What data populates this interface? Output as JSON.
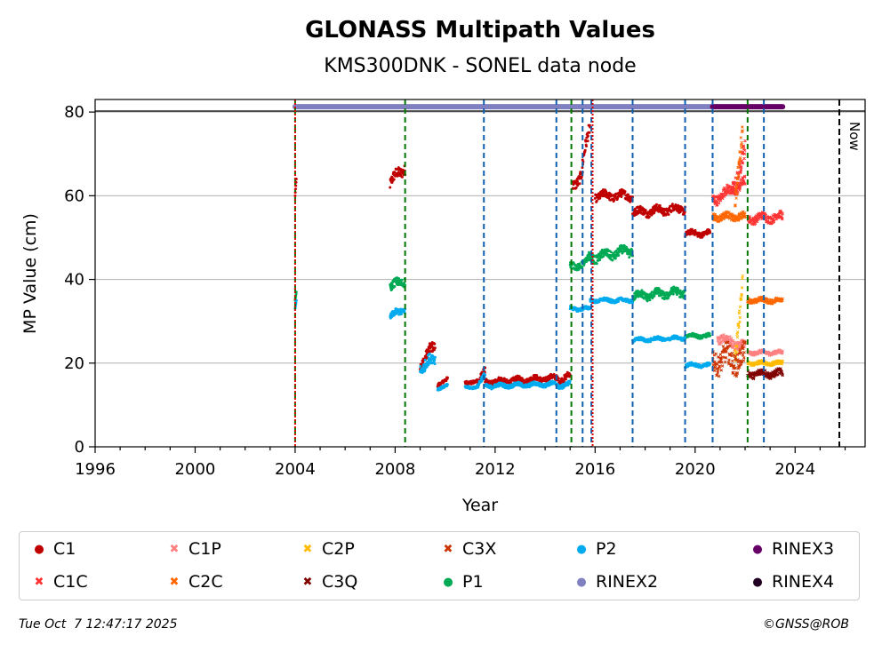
{
  "chart_data": {
    "type": "scatter",
    "title": "GLONASS Multipath Values",
    "subtitle": "KMS300DNK - SONEL data node",
    "xlabel": "Year",
    "ylabel": "MP Value (cm)",
    "xlim": [
      1996,
      2026.8
    ],
    "ylim": [
      0,
      83
    ],
    "x_ticks": [
      1996,
      2000,
      2004,
      2008,
      2012,
      2016,
      2020,
      2024
    ],
    "y_ticks": [
      0,
      20,
      40,
      60,
      80
    ],
    "grid": "horizontal",
    "now_marker": {
      "x": 2025.77,
      "label": "Now"
    },
    "vlines_blue": [
      2011.55,
      2014.45,
      2015.5,
      2015.85,
      2017.5,
      2019.6,
      2020.7,
      2022.75
    ],
    "vlines_green": [
      2004.0,
      2008.4,
      2015.05,
      2022.1
    ],
    "vlines_red": [
      2004.0,
      2015.9
    ],
    "rinex_bars": [
      {
        "name": "RINEX2",
        "y": 81.5,
        "start": 2004.0,
        "end": 2020.7,
        "color": "#8080c0"
      },
      {
        "name": "RINEX3",
        "y": 81.5,
        "start": 2020.7,
        "end": 2023.5,
        "color": "#660066"
      }
    ],
    "series": [
      {
        "name": "C1",
        "color": "#c00000",
        "marker": "dot",
        "segments": [
          [
            2004.0,
            2004.05,
            60,
            64,
            0
          ],
          [
            2007.8,
            2008.4,
            63,
            67,
            2.5
          ],
          [
            2009.0,
            2009.6,
            20,
            24,
            2.5
          ],
          [
            2009.7,
            2010.1,
            15,
            16,
            0.8
          ],
          [
            2010.8,
            2011.3,
            15,
            16,
            0.8
          ],
          [
            2011.3,
            2011.6,
            15,
            18,
            1.5
          ],
          [
            2011.6,
            2014.5,
            15.5,
            16.5,
            1.2
          ],
          [
            2014.5,
            2015.0,
            16,
            17,
            1.5
          ],
          [
            2015.1,
            2015.5,
            62,
            66,
            2.5
          ],
          [
            2015.5,
            2015.8,
            68,
            76,
            3
          ],
          [
            2016.0,
            2017.5,
            60,
            60,
            1.8
          ],
          [
            2017.5,
            2019.6,
            56,
            57,
            1.8
          ],
          [
            2019.6,
            2020.6,
            51,
            51,
            1.2
          ]
        ]
      },
      {
        "name": "C1C",
        "color": "#ff3333",
        "marker": "x",
        "segments": [
          [
            2020.7,
            2022.0,
            59,
            63,
            2.2
          ],
          [
            2021.5,
            2022.0,
            62,
            70,
            4
          ],
          [
            2022.1,
            2023.5,
            54.5,
            55,
            1.8
          ]
        ]
      },
      {
        "name": "C1P",
        "color": "#ff8080",
        "marker": "x",
        "segments": [
          [
            2020.9,
            2022.0,
            26,
            24,
            2
          ],
          [
            2022.1,
            2023.5,
            22.5,
            22.5,
            0.8
          ]
        ]
      },
      {
        "name": "C2C",
        "color": "#ff6600",
        "marker": "x",
        "segments": [
          [
            2020.7,
            2022.0,
            55,
            55,
            1.5
          ],
          [
            2021.6,
            2021.9,
            60,
            75,
            4
          ],
          [
            2022.1,
            2023.5,
            35,
            35,
            1
          ]
        ]
      },
      {
        "name": "C2P",
        "color": "#ffbb00",
        "marker": "x",
        "segments": [
          [
            2021.6,
            2021.9,
            22,
            38,
            4
          ],
          [
            2022.1,
            2023.5,
            20,
            20,
            0.8
          ]
        ]
      },
      {
        "name": "C3Q",
        "color": "#800000",
        "marker": "x",
        "segments": [
          [
            2022.1,
            2023.5,
            17.5,
            17.5,
            1.5
          ]
        ]
      },
      {
        "name": "C3X",
        "color": "#cc3300",
        "marker": "x",
        "segments": [
          [
            2020.7,
            2022.0,
            21,
            21,
            5
          ]
        ]
      },
      {
        "name": "P1",
        "color": "#00aa55",
        "marker": "dot",
        "segments": [
          [
            2004.0,
            2004.05,
            35,
            37,
            0
          ],
          [
            2007.8,
            2008.4,
            38,
            40,
            2
          ],
          [
            2015.0,
            2015.7,
            43,
            44,
            1.5
          ],
          [
            2015.7,
            2017.5,
            45,
            47,
            2
          ],
          [
            2017.5,
            2019.6,
            36,
            37,
            1.8
          ],
          [
            2019.6,
            2020.6,
            26.5,
            26.5,
            0.8
          ]
        ]
      },
      {
        "name": "P2",
        "color": "#00aaee",
        "marker": "dot",
        "segments": [
          [
            2004.0,
            2004.05,
            33,
            35,
            0
          ],
          [
            2007.8,
            2008.4,
            31,
            33,
            1.5
          ],
          [
            2009.0,
            2009.6,
            19,
            21,
            2.5
          ],
          [
            2009.7,
            2010.1,
            14,
            14.5,
            0.6
          ],
          [
            2010.8,
            2011.3,
            14,
            14.5,
            0.6
          ],
          [
            2011.3,
            2011.6,
            14.5,
            17,
            1.2
          ],
          [
            2011.6,
            2014.5,
            14.5,
            15,
            0.9
          ],
          [
            2014.5,
            2015.0,
            14.5,
            15,
            1
          ],
          [
            2015.0,
            2015.8,
            33,
            33,
            0.8
          ],
          [
            2015.8,
            2017.5,
            35,
            35,
            0.8
          ],
          [
            2017.5,
            2019.6,
            25.5,
            26,
            0.8
          ],
          [
            2019.6,
            2020.6,
            19.5,
            19.5,
            0.8
          ]
        ]
      }
    ],
    "legend": [
      {
        "label": "C1",
        "color": "#c00000",
        "marker": "●"
      },
      {
        "label": "C1C",
        "color": "#ff3333",
        "marker": "✖"
      },
      {
        "label": "C1P",
        "color": "#ff8080",
        "marker": "✖"
      },
      {
        "label": "C2C",
        "color": "#ff6600",
        "marker": "✖"
      },
      {
        "label": "C2P",
        "color": "#ffbb00",
        "marker": "✖"
      },
      {
        "label": "C3Q",
        "color": "#800000",
        "marker": "✖"
      },
      {
        "label": "C3X",
        "color": "#cc3300",
        "marker": "✖"
      },
      {
        "label": "P1",
        "color": "#00aa55",
        "marker": "●"
      },
      {
        "label": "P2",
        "color": "#00aaee",
        "marker": "●"
      },
      {
        "label": "RINEX2",
        "color": "#8080c0",
        "marker": "●"
      },
      {
        "label": "RINEX3",
        "color": "#660066",
        "marker": "●"
      },
      {
        "label": "RINEX4",
        "color": "#220022",
        "marker": "●"
      }
    ]
  },
  "footer": {
    "timestamp": "Tue Oct  7 12:47:17 2025",
    "credit": "©GNSS@ROB"
  }
}
